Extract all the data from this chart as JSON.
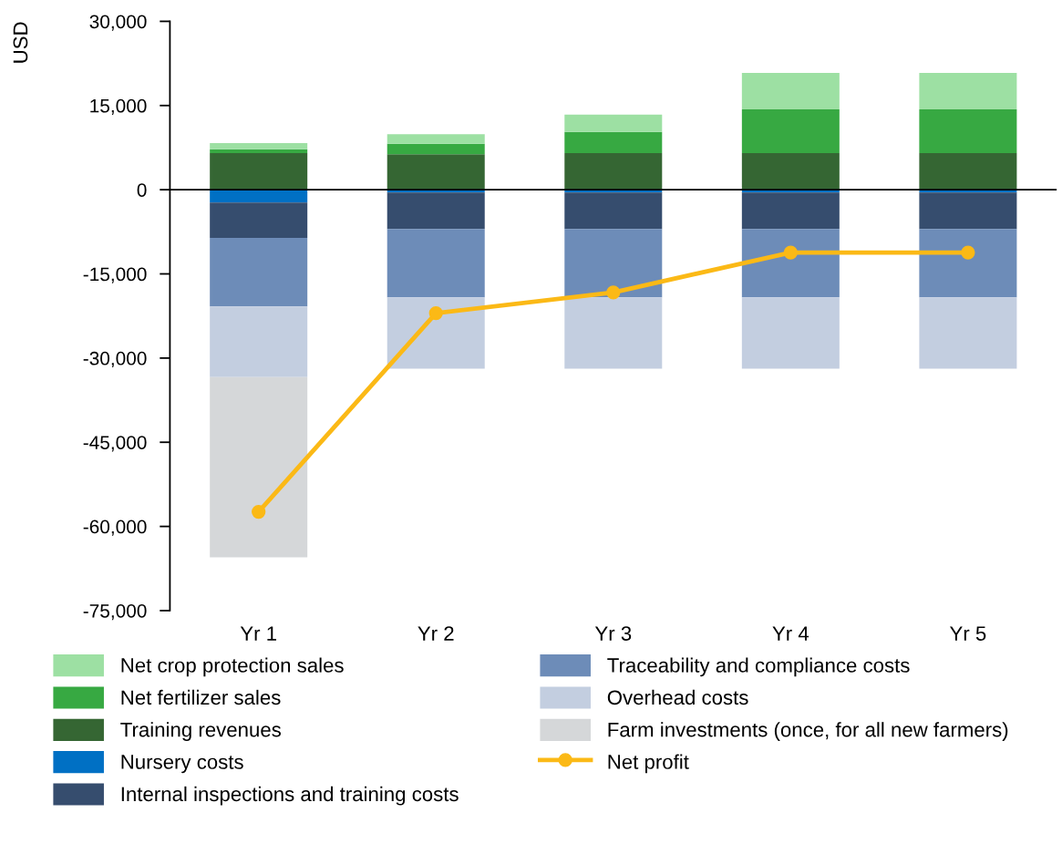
{
  "chart_data": {
    "type": "bar",
    "stacked": true,
    "ylabel": "USD",
    "categories": [
      "Yr 1",
      "Yr 2",
      "Yr 3",
      "Yr 4",
      "Yr 5"
    ],
    "series": [
      {
        "name": "Training revenues",
        "color": "#356633",
        "values": [
          6500,
          6300,
          6500,
          6500,
          6500
        ]
      },
      {
        "name": "Net fertilizer sales",
        "color": "#37a942",
        "values": [
          700,
          1900,
          3800,
          7800,
          7800
        ]
      },
      {
        "name": "Net crop protection sales",
        "color": "#9de0a3",
        "values": [
          1100,
          1700,
          3100,
          6500,
          6500
        ]
      },
      {
        "name": "Nursery costs",
        "color": "#0070c4",
        "values": [
          -2300,
          -500,
          -500,
          -500,
          -500
        ]
      },
      {
        "name": "Internal inspections and training costs",
        "color": "#364d6e",
        "values": [
          -6300,
          -6500,
          -6500,
          -6500,
          -6500
        ]
      },
      {
        "name": "Traceability and compliance costs",
        "color": "#6d8cb8",
        "values": [
          -12200,
          -12200,
          -12200,
          -12200,
          -12200
        ]
      },
      {
        "name": "Overhead costs",
        "color": "#c3cee0",
        "values": [
          -12600,
          -12700,
          -12700,
          -12700,
          -12700
        ]
      },
      {
        "name": "Farm investments (once, for all new farmers)",
        "color": "#d5d7d9",
        "values": [
          -32100,
          null,
          null,
          null,
          null
        ]
      },
      {
        "name": "Net profit",
        "type": "line",
        "color": "#fbb916",
        "marker": "circle",
        "values": [
          -57400,
          -22000,
          -18300,
          -11200,
          -11200
        ]
      }
    ],
    "ylim": [
      -75000,
      30000
    ],
    "yticks": [
      {
        "value": 30000,
        "label": "30,000"
      },
      {
        "value": 15000,
        "label": "15,000"
      },
      {
        "value": 0,
        "label": "0"
      },
      {
        "value": -15000,
        "label": "-15,000"
      },
      {
        "value": -30000,
        "label": "-30,000"
      },
      {
        "value": -45000,
        "label": "-45,000"
      },
      {
        "value": -60000,
        "label": "-60,000"
      },
      {
        "value": -75000,
        "label": "-75,000"
      }
    ],
    "ref_lines": [
      {
        "axis": "y",
        "value": 0,
        "label": null,
        "color": "#000000"
      }
    ],
    "grid": false,
    "legend": "bottom"
  }
}
